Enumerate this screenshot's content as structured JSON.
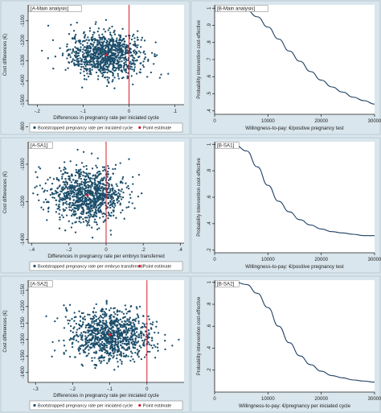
{
  "chart_data": [
    {
      "type": "scatter",
      "panel_label": "[A-Main analysis]",
      "xlabel": "Differences in pregnancy rate per iniciated cycle",
      "ylabel": "Cost differences (€)",
      "xlim": [
        -0.22,
        0.12
      ],
      "ylim": [
        -1520,
        -1020
      ],
      "x_ticks": [
        -0.2,
        -0.1,
        0,
        0.1
      ],
      "x_tick_labels": [
        "-.2",
        "-.1",
        "0",
        ".1"
      ],
      "y_ticks": [
        -1500,
        -1400,
        -1300,
        -1200,
        -1100
      ],
      "y_tick_labels": [
        "-1500",
        "-1400",
        "-1300",
        "-1200",
        "-1100"
      ],
      "ref_x": 0,
      "cloud": {
        "center_x": -0.05,
        "center_y": -1270,
        "sd_x": 0.04,
        "sd_y": 55,
        "n": 1000
      },
      "point_estimate": {
        "x": -0.05,
        "y": -1270
      },
      "legend": [
        "Bootstrapped pregnancy rate per iniciated cycle",
        "Point estimate"
      ]
    },
    {
      "type": "line",
      "panel_label": "[B-Main analysis]",
      "xlabel": "Willingness-to-pay: €/positive pregnancy test",
      "ylabel": "Probability intervention cost-effective",
      "xlim": [
        0,
        30000
      ],
      "ylim": [
        0.38,
        1.02
      ],
      "x_ticks": [
        0,
        10000,
        20000,
        30000
      ],
      "x_tick_labels": [
        "0",
        "10000",
        "20000",
        "30000"
      ],
      "y_ticks": [
        0.4,
        0.5,
        0.6,
        0.7,
        0.8,
        0.9,
        1
      ],
      "y_tick_labels": [
        ".4",
        ".5",
        ".6",
        ".7",
        ".8",
        ".9",
        "1"
      ],
      "x": [
        0,
        2000,
        4000,
        6000,
        8000,
        10000,
        12000,
        14000,
        16000,
        18000,
        20000,
        22000,
        24000,
        26000,
        28000,
        30000
      ],
      "y": [
        1.0,
        1.0,
        1.0,
        0.99,
        0.95,
        0.89,
        0.82,
        0.75,
        0.69,
        0.63,
        0.58,
        0.54,
        0.51,
        0.48,
        0.46,
        0.44
      ]
    },
    {
      "type": "scatter",
      "panel_label": "[A-SA1]",
      "xlabel": "Differences in pregnancy rate per embryo transferred",
      "ylabel": "Cost differences (€)",
      "xlim": [
        -0.42,
        0.42
      ],
      "ylim": [
        -1420,
        -880
      ],
      "x_ticks": [
        -0.4,
        -0.2,
        0,
        0.2,
        0.4
      ],
      "x_tick_labels": [
        "-.4",
        "-.2",
        "0",
        ".2",
        ".4"
      ],
      "y_ticks": [
        -1400,
        -1200,
        -1000,
        -800
      ],
      "y_tick_labels": [
        "-1400",
        "-1200",
        "-1000",
        "-800"
      ],
      "ref_x": 0,
      "cloud": {
        "center_x": -0.1,
        "center_y": -1165,
        "sd_x": 0.1,
        "sd_y": 70,
        "n": 1000
      },
      "point_estimate": {
        "x": -0.1,
        "y": -1165
      },
      "legend": [
        "Bootstrapped pregnancy rate per embryo transferred",
        "Point estimate"
      ]
    },
    {
      "type": "line",
      "panel_label": "[B-SA1]",
      "xlabel": "Willingness-to-pay: €/positive pregnancy test",
      "ylabel": "Probability intervention cost-effective",
      "xlim": [
        0,
        30000
      ],
      "ylim": [
        0.18,
        1.02
      ],
      "x_ticks": [
        0,
        10000,
        20000,
        30000
      ],
      "x_tick_labels": [
        "0",
        "10000",
        "20000",
        "30000"
      ],
      "y_ticks": [
        0.2,
        0.4,
        0.6,
        0.8,
        1
      ],
      "y_tick_labels": [
        ".2",
        ".4",
        ".6",
        ".8",
        "1"
      ],
      "x": [
        0,
        2000,
        4000,
        6000,
        8000,
        10000,
        12000,
        14000,
        16000,
        18000,
        20000,
        22000,
        24000,
        26000,
        28000,
        30000
      ],
      "y": [
        1.0,
        1.0,
        0.99,
        0.95,
        0.83,
        0.69,
        0.57,
        0.49,
        0.43,
        0.39,
        0.36,
        0.34,
        0.33,
        0.32,
        0.31,
        0.31
      ]
    },
    {
      "type": "scatter",
      "panel_label": "[A-SA2]",
      "xlabel": "Differences in pregnancy rate per iniciated cycle",
      "ylabel": "Cost differences (€)",
      "xlim": [
        -0.32,
        0.1
      ],
      "ylim": [
        -1430,
        -1120
      ],
      "x_ticks": [
        -0.3,
        -0.2,
        -0.1,
        0
      ],
      "x_tick_labels": [
        "-.3",
        "-.2",
        "-.1",
        "0"
      ],
      "y_ticks": [
        -1400,
        -1350,
        -1300,
        -1250,
        -1200,
        -1150
      ],
      "y_tick_labels": [
        "-1400",
        "-1350",
        "-1300",
        "-1250",
        "-1200",
        "-1150"
      ],
      "ref_x": 0,
      "cloud": {
        "center_x": -0.1,
        "center_y": -1285,
        "sd_x": 0.055,
        "sd_y": 38,
        "n": 1000
      },
      "point_estimate": {
        "x": -0.1,
        "y": -1285
      },
      "legend": [
        "Bootstrapped pregnancy rate per iniciated cycle",
        "Point estimate"
      ]
    },
    {
      "type": "line",
      "panel_label": "[B-SA2]",
      "xlabel": "Willingness-to-pay: €/pregnancy per iniciated cycle",
      "ylabel": "Probability intervention cost-effective",
      "xlim": [
        0,
        30000
      ],
      "ylim": [
        0.0,
        1.02
      ],
      "x_ticks": [
        0,
        10000,
        20000,
        30000
      ],
      "x_tick_labels": [
        "0",
        "10000",
        "20000",
        "30000"
      ],
      "y_ticks": [
        0.2,
        0.4,
        0.6,
        0.8,
        1
      ],
      "y_tick_labels": [
        ".2",
        ".4",
        ".6",
        ".8",
        "1"
      ],
      "x": [
        0,
        2000,
        4000,
        6000,
        8000,
        10000,
        12000,
        14000,
        16000,
        18000,
        20000,
        22000,
        24000,
        26000,
        28000,
        30000
      ],
      "y": [
        1.0,
        1.0,
        1.0,
        0.98,
        0.9,
        0.77,
        0.6,
        0.45,
        0.33,
        0.25,
        0.19,
        0.15,
        0.13,
        0.11,
        0.1,
        0.09
      ]
    }
  ]
}
